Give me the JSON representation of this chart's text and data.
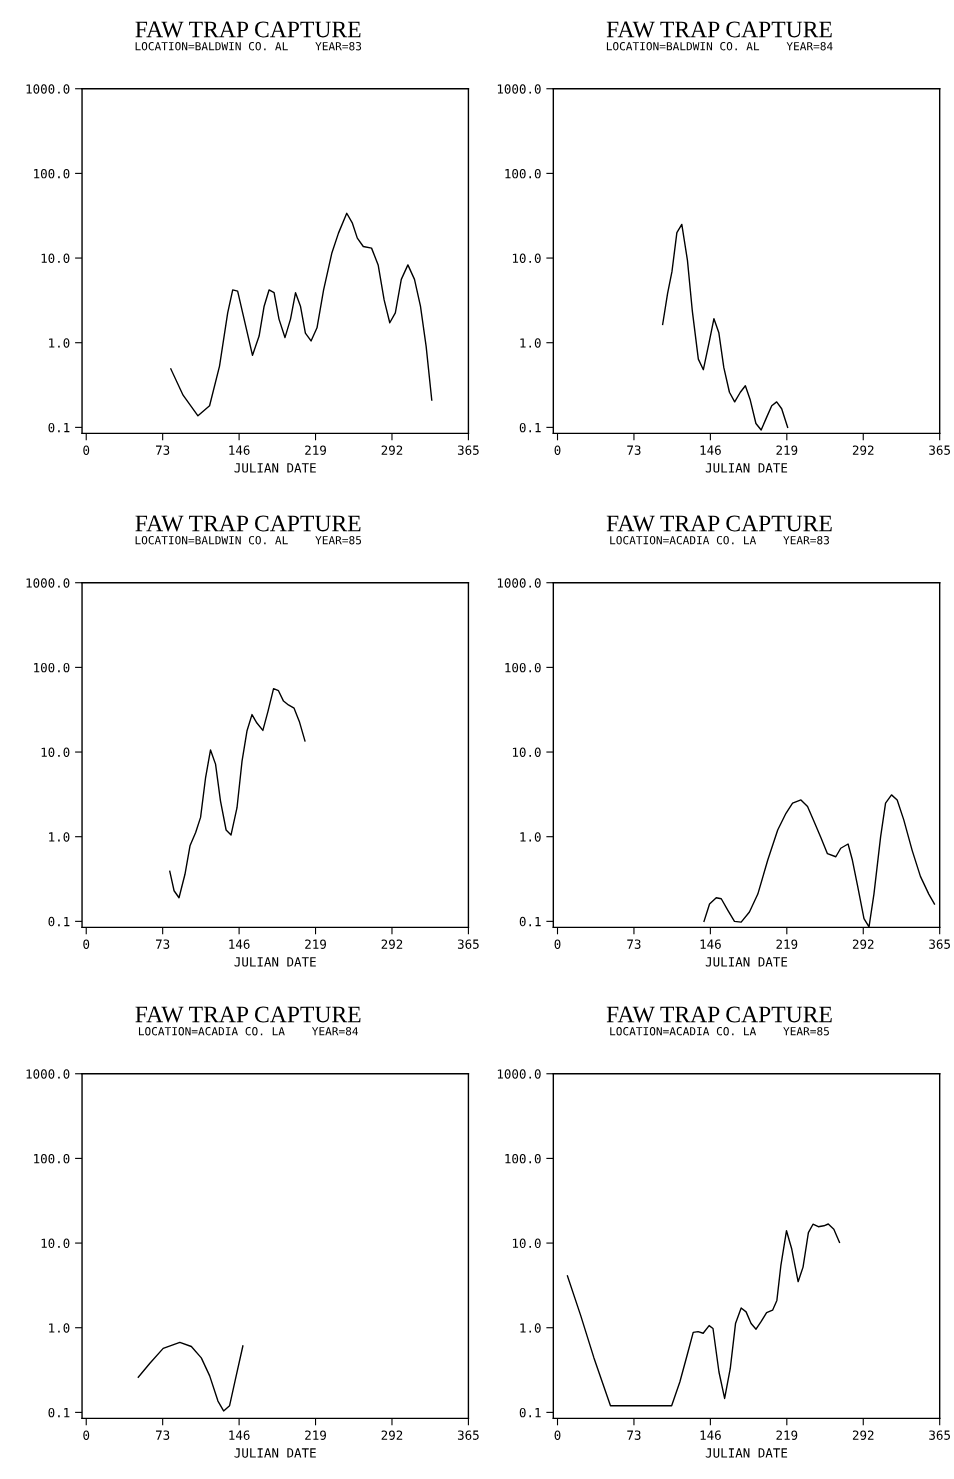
{
  "chart_data": [
    {
      "type": "line",
      "title": "FAW TRAP CAPTURE",
      "subtitle": "LOCATION=BALDWIN CO. AL    YEAR=83",
      "xlabel": "JULIAN DATE",
      "log": true,
      "xlim": [
        -4,
        365
      ],
      "ylim": [
        0.085,
        1000
      ],
      "xticks": [
        0,
        73,
        146,
        219,
        292,
        365
      ],
      "yticks": [
        {
          "value": 0.1,
          "label": "0.1"
        },
        {
          "value": 1,
          "label": "1.0"
        },
        {
          "value": 10,
          "label": "10.0"
        },
        {
          "value": 100,
          "label": "100.0"
        },
        {
          "value": 1000,
          "label": "1000.0"
        }
      ],
      "series": [
        {
          "color": "#000000",
          "x": [
            80.8,
            92.5,
            106.7,
            117.8,
            127.3,
            135.1,
            139.9,
            144.6,
            149.4,
            158.8,
            165.1,
            169.9,
            174.6,
            179.4,
            184.1,
            189.8,
            195.1,
            199.9,
            204.6,
            209.3,
            214.7,
            220.4,
            226.7,
            234.6,
            240.9,
            248.8,
            254.2,
            258.9,
            264.6,
            272.5,
            278.8,
            284.5,
            289.9,
            295.2,
            300.9,
            307.2,
            313.5,
            319.2,
            324.6,
            330.0
          ],
          "values": [
            0.49,
            0.24,
            0.137,
            0.18,
            0.53,
            2.25,
            4.2,
            4.06,
            2.25,
            0.71,
            1.2,
            2.7,
            4.2,
            3.9,
            1.9,
            1.15,
            1.9,
            3.9,
            2.7,
            1.3,
            1.05,
            1.5,
            4.2,
            11.5,
            19.7,
            33.8,
            25.8,
            17.2,
            13.7,
            13.1,
            8.3,
            3.2,
            1.72,
            2.25,
            5.6,
            8.3,
            5.6,
            2.7,
            0.91,
            0.21
          ]
        }
      ]
    },
    {
      "type": "line",
      "title": "FAW TRAP CAPTURE",
      "subtitle": "LOCATION=BALDWIN CO. AL    YEAR=84",
      "xlabel": "JULIAN DATE",
      "log": true,
      "xlim": [
        -4,
        365
      ],
      "ylim": [
        0.085,
        1000
      ],
      "xticks": [
        0,
        73,
        146,
        219,
        292,
        365
      ],
      "yticks": [
        {
          "value": 0.1,
          "label": "0.1"
        },
        {
          "value": 1,
          "label": "1.0"
        },
        {
          "value": 10,
          "label": "10.0"
        },
        {
          "value": 100,
          "label": "100.0"
        },
        {
          "value": 1000,
          "label": "1000.0"
        }
      ],
      "series": [
        {
          "color": "#000000",
          "x": [
            100.4,
            105.1,
            109.3,
            114.0,
            118.7,
            124.1,
            128.8,
            134.5,
            139.3,
            144.6,
            149.4,
            154.1,
            158.8,
            164.2,
            169.2,
            174.6,
            179.4,
            184.1,
            189.5,
            194.5,
            199.9,
            204.6,
            209.3,
            214.1,
            219.8
          ],
          "values": [
            1.64,
            3.8,
            6.9,
            20,
            25,
            9.4,
            2.34,
            0.64,
            0.48,
            0.98,
            1.92,
            1.31,
            0.51,
            0.26,
            0.2,
            0.26,
            0.31,
            0.21,
            0.111,
            0.093,
            0.133,
            0.18,
            0.2,
            0.166,
            0.1
          ]
        }
      ]
    },
    {
      "type": "line",
      "title": "FAW TRAP CAPTURE",
      "subtitle": "LOCATION=BALDWIN CO. AL    YEAR=85",
      "xlabel": "JULIAN DATE",
      "log": true,
      "xlim": [
        -4,
        365
      ],
      "ylim": [
        0.085,
        1000
      ],
      "xticks": [
        0,
        73,
        146,
        219,
        292,
        365
      ],
      "yticks": [
        {
          "value": 0.1,
          "label": "0.1"
        },
        {
          "value": 1,
          "label": "1.0"
        },
        {
          "value": 10,
          "label": "10.0"
        },
        {
          "value": 100,
          "label": "100.0"
        },
        {
          "value": 1000,
          "label": "1000.0"
        }
      ],
      "series": [
        {
          "color": "#000000",
          "x": [
            79.8,
            83.9,
            88.6,
            94.3,
            99.1,
            104.5,
            109.2,
            114.0,
            118.7,
            123.5,
            128.2,
            133.6,
            138.3,
            144.0,
            148.8,
            153.5,
            158.3,
            163.0,
            168.7,
            173.5,
            178.9,
            183.6,
            188.4,
            193.1,
            198.5,
            203.5,
            208.9
          ],
          "values": [
            0.39,
            0.23,
            0.19,
            0.36,
            0.78,
            1.12,
            1.69,
            5.0,
            10.6,
            7.2,
            2.65,
            1.2,
            1.05,
            2.2,
            7.8,
            17.7,
            27.7,
            22,
            18,
            30,
            56,
            53,
            40,
            36,
            33,
            23,
            13.5
          ]
        }
      ]
    },
    {
      "type": "line",
      "title": "FAW TRAP CAPTURE",
      "subtitle": "LOCATION=ACADIA CO. LA    YEAR=83",
      "xlabel": "JULIAN DATE",
      "log": true,
      "xlim": [
        -4,
        365
      ],
      "ylim": [
        0.085,
        1000
      ],
      "xticks": [
        0,
        73,
        146,
        219,
        292,
        365
      ],
      "yticks": [
        {
          "value": 0.1,
          "label": "0.1"
        },
        {
          "value": 1,
          "label": "1.0"
        },
        {
          "value": 10,
          "label": "10.0"
        },
        {
          "value": 100,
          "label": "100.0"
        },
        {
          "value": 1000,
          "label": "1000.0"
        }
      ],
      "series": [
        {
          "color": "#000000",
          "x": [
            139.9,
            145.2,
            151.6,
            156.4,
            162.7,
            169.0,
            175.4,
            183.3,
            191.3,
            200.8,
            210.3,
            218.2,
            224.5,
            232.5,
            238.8,
            245.1,
            251.5,
            257.8,
            265.8,
            270.5,
            277.5,
            281.6,
            286.4,
            292.7,
            297.5,
            302.2,
            308.6,
            313.3,
            319.0,
            324.4,
            330.7,
            338.7,
            346.6,
            354.6,
            360.0
          ],
          "values": [
            0.1,
            0.16,
            0.19,
            0.185,
            0.135,
            0.1,
            0.098,
            0.129,
            0.21,
            0.53,
            1.2,
            1.89,
            2.49,
            2.72,
            2.27,
            1.5,
            0.98,
            0.63,
            0.58,
            0.73,
            0.82,
            0.53,
            0.27,
            0.108,
            0.086,
            0.21,
            1.0,
            2.49,
            3.12,
            2.72,
            1.58,
            0.69,
            0.34,
            0.21,
            0.16
          ]
        }
      ]
    },
    {
      "type": "line",
      "title": "FAW TRAP CAPTURE",
      "subtitle": "LOCATION=ACADIA CO. LA    YEAR=84",
      "xlabel": "JULIAN DATE",
      "log": true,
      "xlim": [
        -4,
        365
      ],
      "ylim": [
        0.085,
        1000
      ],
      "xticks": [
        0,
        73,
        146,
        219,
        292,
        365
      ],
      "yticks": [
        {
          "value": 0.1,
          "label": "0.1"
        },
        {
          "value": 1,
          "label": "1.0"
        },
        {
          "value": 10,
          "label": "10.0"
        },
        {
          "value": 100,
          "label": "100.0"
        },
        {
          "value": 1000,
          "label": "1000.0"
        }
      ],
      "series": [
        {
          "color": "#000000",
          "x": [
            49.7,
            60.8,
            73.5,
            89.4,
            100.4,
            109.9,
            117.9,
            125.8,
            131.2,
            136.9,
            143.2,
            149.6
          ],
          "values": [
            0.26,
            0.38,
            0.57,
            0.67,
            0.6,
            0.44,
            0.27,
            0.136,
            0.104,
            0.12,
            0.27,
            0.61
          ]
        }
      ]
    },
    {
      "type": "line",
      "title": "FAW TRAP CAPTURE",
      "subtitle": "LOCATION=ACADIA CO. LA    YEAR=85",
      "xlabel": "JULIAN DATE",
      "log": true,
      "xlim": [
        -4,
        365
      ],
      "ylim": [
        0.085,
        1000
      ],
      "xticks": [
        0,
        73,
        146,
        219,
        292,
        365
      ],
      "yticks": [
        {
          "value": 0.1,
          "label": "0.1"
        },
        {
          "value": 1,
          "label": "1.0"
        },
        {
          "value": 10,
          "label": "10.0"
        },
        {
          "value": 100,
          "label": "100.0"
        },
        {
          "value": 1000,
          "label": "1000.0"
        }
      ],
      "series": [
        {
          "color": "#000000",
          "x": [
            9.5,
            22.1,
            34.8,
            50.6,
            109.0,
            116.9,
            123.9,
            129.6,
            134.3,
            139.1,
            144.8,
            148.5,
            154.2,
            159.6,
            165.0,
            170.0,
            175.4,
            180.1,
            184.9,
            189.6,
            194.4,
            199.7,
            205.4,
            209.5,
            213.3,
            218.7,
            223.7,
            229.8,
            234.5,
            239.6,
            244.0,
            249.1,
            254.4,
            258.6,
            263.9,
            269.3
          ],
          "values": [
            4.1,
            1.4,
            0.44,
            0.12,
            0.12,
            0.23,
            0.48,
            0.88,
            0.9,
            0.86,
            1.06,
            0.98,
            0.3,
            0.146,
            0.33,
            1.12,
            1.71,
            1.54,
            1.12,
            0.96,
            1.18,
            1.51,
            1.61,
            2.1,
            5.4,
            14,
            8.5,
            3.5,
            5.2,
            13.3,
            16.7,
            15.6,
            16,
            16.8,
            14.6,
            10.2
          ]
        }
      ]
    }
  ]
}
